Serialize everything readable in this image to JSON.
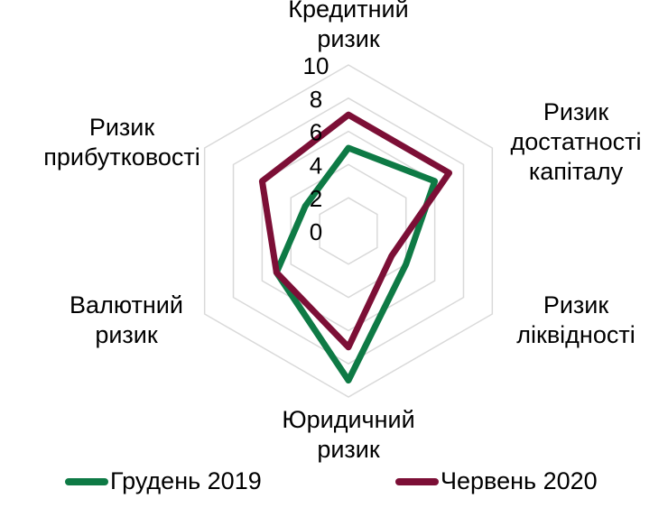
{
  "chart_data": {
    "type": "radar",
    "title": "",
    "categories": [
      "Кредитний ризик",
      "Ризик достатності капіталу",
      "Ризик ліквідності",
      "Юридичний ризик",
      "Валютний ризик",
      "Ризик прибутковості"
    ],
    "series": [
      {
        "name": "Грудень 2019",
        "color": "#0e7a45",
        "values": [
          5,
          6,
          4,
          9,
          5,
          3
        ]
      },
      {
        "name": "Червень 2020",
        "color": "#7c0f36",
        "values": [
          7,
          7,
          3,
          7,
          5,
          6
        ]
      }
    ],
    "radial_ticks": [
      "0",
      "2",
      "4",
      "6",
      "8",
      "10"
    ],
    "rlim": [
      0,
      10
    ],
    "grid": true,
    "legend_position": "bottom"
  },
  "labels": {
    "credit": "Кредитний\nризик",
    "capital": "Ризик\nдостатності\nкапіталу",
    "liquidity": "Ризик\nліквідності",
    "legal": "Юридичний\nризик",
    "currency": "Валютний\nризик",
    "profitability": "Ризик\nприбутковості"
  },
  "legend": {
    "series1": "Грудень 2019",
    "series2": "Червень 2020"
  }
}
